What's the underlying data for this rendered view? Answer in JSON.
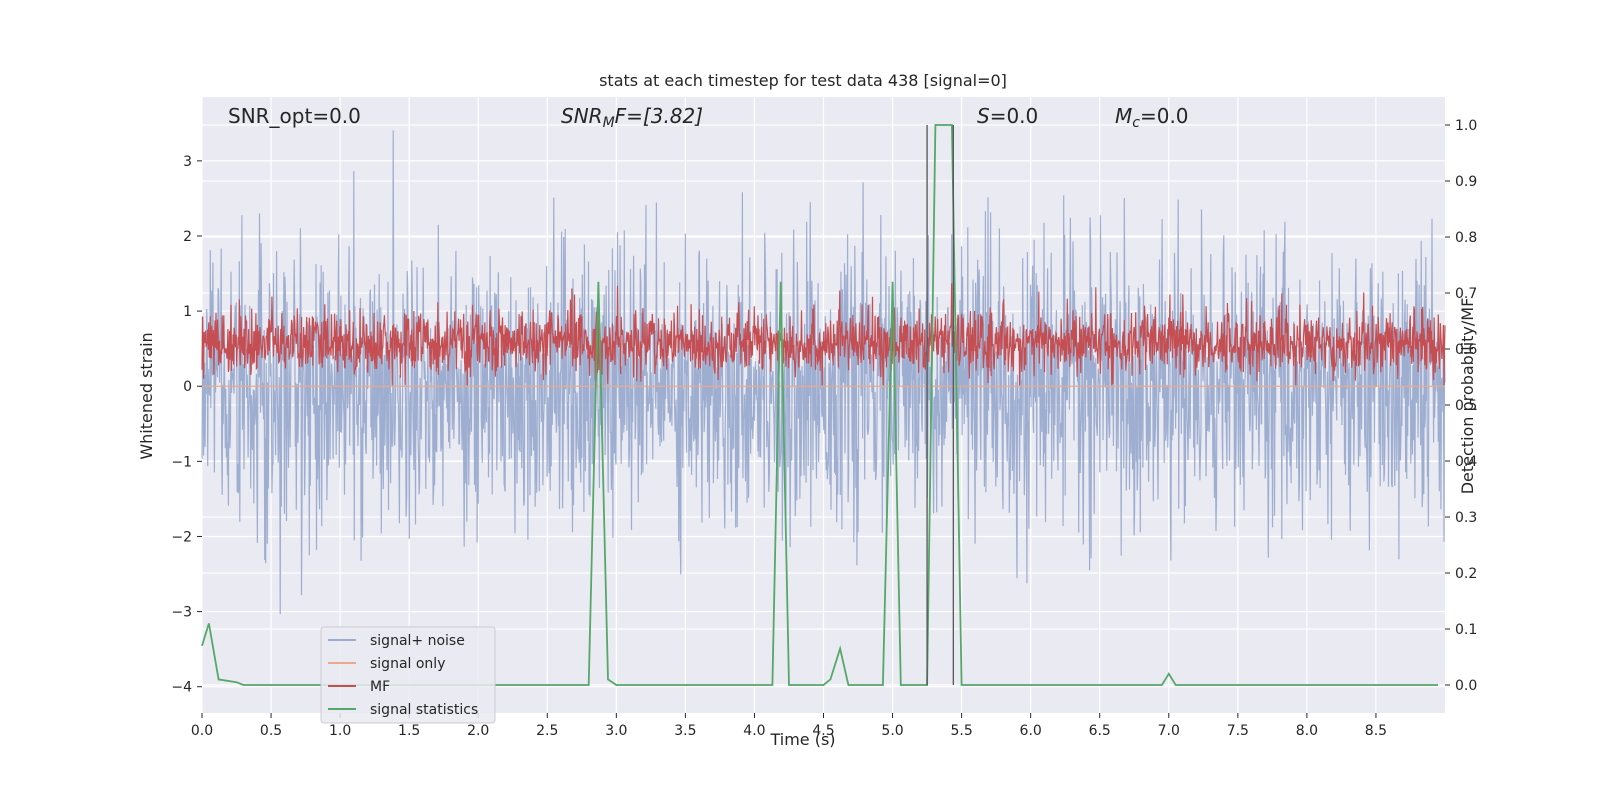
{
  "chart_data": {
    "type": "line",
    "title": "stats at each timestep for test data 438 [signal=0]",
    "xlabel": "Time (s)",
    "ylabel": "Whitened strain",
    "y2label": "Detection probability/MF",
    "xlim": [
      0.0,
      9.0
    ],
    "ylim": [
      -4.35,
      3.85
    ],
    "y2lim": [
      -0.05,
      1.05
    ],
    "x_ticks": [
      0.0,
      0.5,
      1.0,
      1.5,
      2.0,
      2.5,
      3.0,
      3.5,
      4.0,
      4.5,
      5.0,
      5.5,
      6.0,
      6.5,
      7.0,
      7.5,
      8.0,
      8.5
    ],
    "x_tick_labels": [
      "0.0",
      "0.5",
      "1.0",
      "1.5",
      "2.0",
      "2.5",
      "3.0",
      "3.5",
      "4.0",
      "4.5",
      "5.0",
      "5.5",
      "6.0",
      "6.5",
      "7.0",
      "7.5",
      "8.0",
      "8.5"
    ],
    "y_ticks": [
      -4,
      -3,
      -2,
      -1,
      0,
      1,
      2,
      3
    ],
    "y_tick_labels": [
      "−4",
      "−3",
      "−2",
      "−1",
      "0",
      "1",
      "2",
      "3"
    ],
    "y2_ticks": [
      0.0,
      0.1,
      0.2,
      0.3,
      0.4,
      0.5,
      0.6,
      0.7,
      0.8,
      0.9,
      1.0
    ],
    "y2_tick_labels": [
      "0.0",
      "0.1",
      "0.2",
      "0.3",
      "0.4",
      "0.5",
      "0.6",
      "0.7",
      "0.8",
      "0.9",
      "1.0"
    ],
    "grid": true,
    "legend_position": "lower-left",
    "annotations": {
      "snr_opt": "SNR_opt=0.0",
      "snr_mf_base": "SNR",
      "snr_mf_sub": "M",
      "snr_mf_rest": "F=[3.82]",
      "s_var": "S",
      "s_rest": "=0.0",
      "mc_var": "M",
      "mc_sub": "c",
      "mc_rest": "=0.0"
    },
    "vlines_x": [
      5.25,
      5.44
    ],
    "series": [
      {
        "name": "signal+ noise",
        "color": "#9aabcf",
        "description_axis": "left",
        "noise_sigma": 0.9,
        "n_samples": 2400
      },
      {
        "name": "signal only",
        "color": "#e9a98a",
        "description_axis": "left",
        "values_constant": 0.0
      },
      {
        "name": "MF",
        "color": "#c44e52",
        "description_axis": "right",
        "typical_range": [
          0.54,
          0.68
        ]
      },
      {
        "name": "signal statistics",
        "color": "#55a868",
        "description_axis": "right",
        "x": [
          0.0,
          0.05,
          0.12,
          0.25,
          0.3,
          2.8,
          2.87,
          2.94,
          3.0,
          4.13,
          4.19,
          4.25,
          4.5,
          4.55,
          4.62,
          4.68,
          4.93,
          5.0,
          5.06,
          5.25,
          5.31,
          5.43,
          5.5,
          6.95,
          7.0,
          7.05,
          8.95
        ],
        "y": [
          0.07,
          0.11,
          0.01,
          0.005,
          0.0,
          0.0,
          0.72,
          0.01,
          0.0,
          0.0,
          0.72,
          0.0,
          0.0,
          0.01,
          0.065,
          0.0,
          0.0,
          0.72,
          0.0,
          0.0,
          1.0,
          1.0,
          0.0,
          0.0,
          0.02,
          0.0,
          0.0
        ]
      }
    ]
  }
}
